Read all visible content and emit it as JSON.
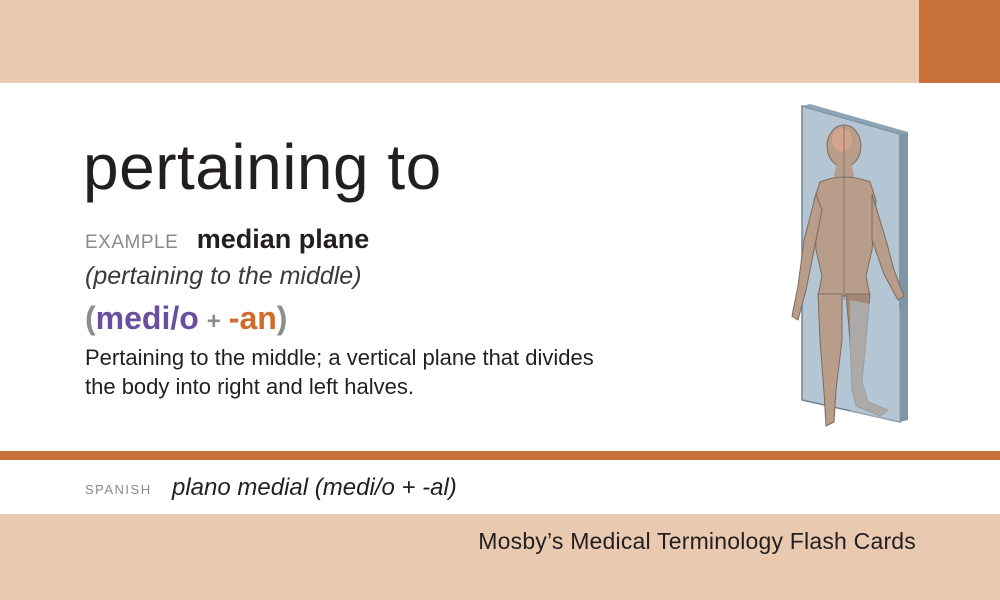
{
  "card": {
    "definition": "pertaining to",
    "example_label": "EXAMPLE",
    "example_term": "median plane",
    "example_gloss": "(pertaining to the middle)",
    "word_parts": {
      "open_paren": "(",
      "root": "medi/o",
      "plus": "+",
      "suffix": "-an",
      "close_paren": ")"
    },
    "explanation_line1": "Pertaining to the middle; a vertical plane that divides",
    "explanation_line2": "the body into right and left halves.",
    "spanish_label": "SPANISH",
    "spanish_term": "plano medial (medi/o + -al)",
    "publisher": "Mosby’s Medical Terminology Flash Cards"
  },
  "colors": {
    "band": "#e9c9af",
    "accent": "#c8723a",
    "root": "#6a4fa0",
    "suffix": "#d06b2c"
  },
  "figure": {
    "icon": "human-figure-median-plane-icon"
  }
}
